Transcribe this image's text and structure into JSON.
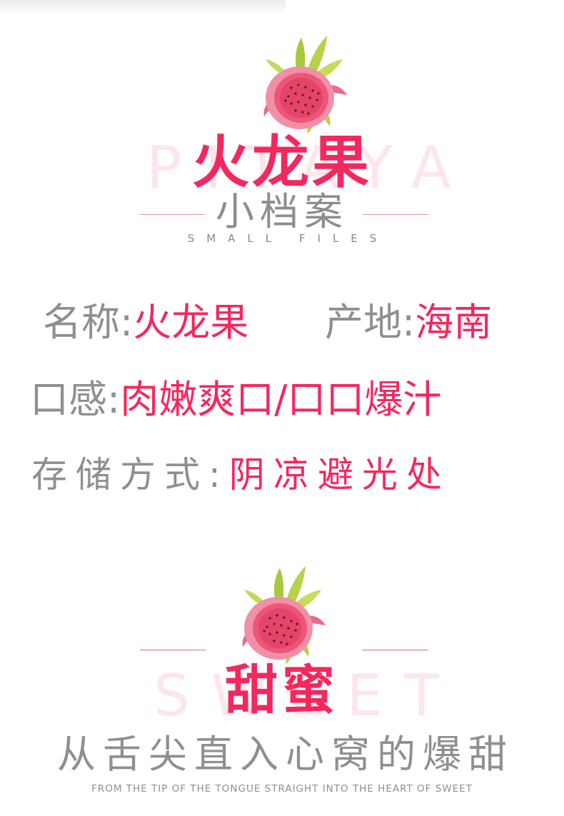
{
  "section1": {
    "bg_watermark": "PITAYA",
    "title": "火龙果",
    "subtitle": "小档案",
    "subtitle_en": "SMALL FILES"
  },
  "info": {
    "name_label": "名称:",
    "name_value": "火龙果",
    "origin_label": "产地:",
    "origin_value": "海南",
    "taste_label": "口感:",
    "taste_value": "肉嫩爽口/口口爆汁",
    "storage_label": "存储方式:",
    "storage_value": "阴凉避光处"
  },
  "section2": {
    "bg_watermark": "SWEET",
    "title": "甜蜜",
    "slogan": "从舌尖直入心窝的爆甜",
    "slogan_en": "FROM THE TIP OF THE TONGUE STRAIGHT INTO THE HEART OF SWEET"
  },
  "icons": {
    "fruit": "dragon-fruit-icon"
  },
  "colors": {
    "accent": "#f3285e",
    "text_gray": "#8f8f8f",
    "watermark": "#fde6ea",
    "line_pink": "#e596a6",
    "line_purple": "#c86ab0"
  }
}
